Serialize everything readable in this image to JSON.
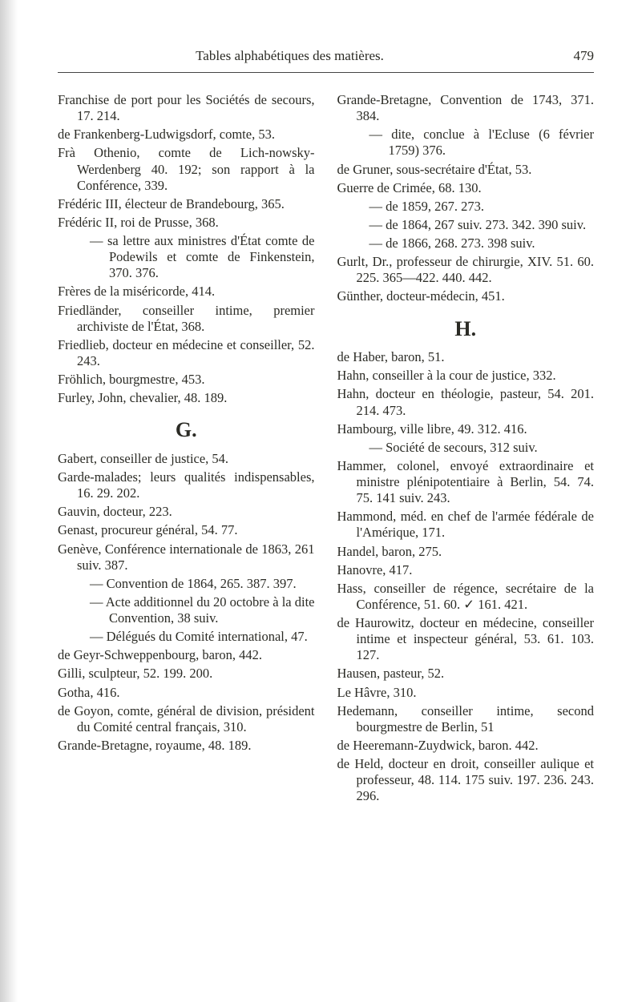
{
  "page_number": "479",
  "running_head": "Tables alphabétiques des matières.",
  "sections": {
    "G": "G.",
    "H": "H."
  },
  "left": {
    "e1": "Franchise de port pour les Sociétés de secours, 17. 214.",
    "e2": "de Frankenberg-Ludwigsdorf, comte, 53.",
    "e3": "Frà Othenio, comte de Lich-nowsky-Werdenberg 40. 192; son rapport à la Conférence, 339.",
    "e4": "Frédéric III, électeur de Brandebourg, 365.",
    "e5": "Frédéric II, roi de Prusse, 368.",
    "e5a": "— sa lettre aux ministres d'État comte de Podewils et comte de Finkenstein, 370. 376.",
    "e6": "Frères de la miséricorde, 414.",
    "e7": "Friedländer, conseiller intime, premier archiviste de l'État, 368.",
    "e8": "Friedlieb, docteur en médecine et conseiller, 52. 243.",
    "e9": "Fröhlich, bourgmestre, 453.",
    "e10": "Furley, John, chevalier, 48. 189.",
    "g1": "Gabert, conseiller de justice, 54.",
    "g2": "Garde-malades; leurs qualités indispensables, 16. 29. 202.",
    "g3": "Gauvin, docteur, 223.",
    "g4": "Genast, procureur général, 54. 77.",
    "g5": "Genève, Conférence internationale de 1863, 261 suiv. 387.",
    "g5a": "— Convention de 1864, 265. 387. 397.",
    "g5b": "— Acte additionnel du 20 octobre à la dite Convention, 38 suiv.",
    "g5c": "— Délégués du Comité international, 47.",
    "g6": "de Geyr-Schweppenbourg, baron, 442.",
    "g7": "Gilli, sculpteur, 52. 199. 200.",
    "g8": "Gotha, 416.",
    "g9": "de Goyon, comte, général de division, président du Comité central français, 310.",
    "g10": "Grande-Bretagne, royaume, 48. 189."
  },
  "right": {
    "r1": "Grande-Bretagne, Convention de 1743, 371. 384.",
    "r1a": "— dite, conclue à l'Ecluse (6 février 1759) 376.",
    "r2": "de Gruner, sous-secrétaire d'État, 53.",
    "r3": "Guerre de Crimée, 68. 130.",
    "r3a": "— de 1859, 267. 273.",
    "r3b": "— de 1864, 267 suiv. 273. 342. 390 suiv.",
    "r3c": "— de 1866, 268. 273. 398 suiv.",
    "r4": "Gurlt, Dr., professeur de chirurgie, XIV. 51. 60. 225. 365—422. 440. 442.",
    "r5": "Günther, docteur-médecin, 451.",
    "h1": "de Haber, baron, 51.",
    "h2": "Hahn, conseiller à la cour de justice, 332.",
    "h3": "Hahn, docteur en théologie, pasteur, 54. 201. 214. 473.",
    "h4": "Hambourg, ville libre, 49. 312. 416.",
    "h4a": "— Société de secours, 312 suiv.",
    "h5": "Hammer, colonel, envoyé extraordinaire et ministre plénipotentiaire à Berlin, 54. 74. 75. 141 suiv. 243.",
    "h6": "Hammond, méd. en chef de l'armée fédérale de l'Amérique, 171.",
    "h7": "Handel, baron, 275.",
    "h8": "Hanovre, 417.",
    "h9": "Hass, conseiller de régence, secrétaire de la Conférence, 51. 60. ✓ 161. 421.",
    "h10": "de Haurowitz, docteur en médecine, conseiller intime et inspecteur général, 53. 61. 103. 127.",
    "h11": "Hausen, pasteur, 52.",
    "h12": "Le Hâvre, 310.",
    "h13": "Hedemann, conseiller intime, second bourgmestre de Berlin, 51",
    "h14": "de Heeremann-Zuydwick, baron. 442.",
    "h15": "de Held, docteur en droit, conseiller aulique et professeur, 48. 114. 175 suiv. 197. 236. 243. 296."
  }
}
